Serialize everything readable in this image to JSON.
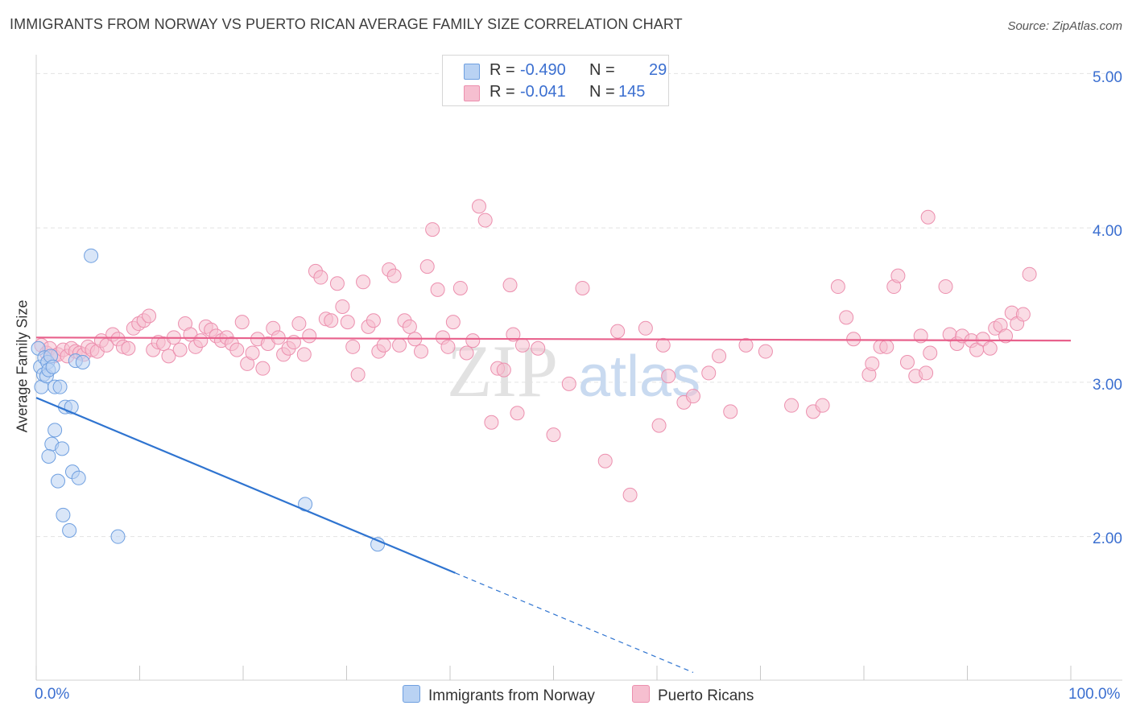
{
  "title": "IMMIGRANTS FROM NORWAY VS PUERTO RICAN AVERAGE FAMILY SIZE CORRELATION CHART",
  "source": "Source: ZipAtlas.com",
  "watermark": {
    "zip": "ZIP",
    "atlas": "atlas"
  },
  "colors": {
    "blue_fill": "#b9d2f3",
    "blue_stroke": "#6e9fe0",
    "blue_line": "#2f74d0",
    "pink_fill": "#f6bfd0",
    "pink_stroke": "#ec8fae",
    "pink_line": "#e8618c",
    "axis_text": "#3b6fd0",
    "grid": "#e3e3e3"
  },
  "legend": {
    "rows": [
      {
        "r_label": "R =",
        "r_value": "-0.490",
        "n_label": "N =",
        "n_value": "29"
      },
      {
        "r_label": "R =",
        "r_value": "-0.041",
        "n_label": "N =",
        "n_value": "145"
      }
    ]
  },
  "bottom_legend": {
    "series1": "Immigrants from Norway",
    "series2": "Puerto Ricans"
  },
  "chart_data": {
    "type": "scatter",
    "xlabel": "",
    "ylabel": "Average Family Size",
    "xlim": [
      0,
      100
    ],
    "ylim": [
      1.07,
      5.07
    ],
    "x_tick_labels": [
      "0.0%",
      "100.0%"
    ],
    "y_ticks": [
      2,
      3,
      4,
      5
    ],
    "y_tick_labels": [
      "2.00",
      "3.00",
      "4.00",
      "5.00"
    ],
    "grid": true,
    "series": [
      {
        "name": "Immigrants from Norway",
        "color": "blue",
        "r": -0.49,
        "n": 29,
        "trend": {
          "x0": 0,
          "y0": 2.9,
          "x_solid_end": 40.5,
          "x1": 63.5,
          "y1": 1.12
        },
        "points": [
          [
            0.2,
            3.22
          ],
          [
            0.4,
            3.1
          ],
          [
            0.5,
            2.97
          ],
          [
            0.7,
            3.05
          ],
          [
            0.8,
            3.16
          ],
          [
            1.0,
            3.04
          ],
          [
            1.1,
            3.13
          ],
          [
            1.2,
            3.08
          ],
          [
            1.4,
            3.17
          ],
          [
            1.5,
            2.6
          ],
          [
            1.2,
            2.52
          ],
          [
            1.6,
            3.1
          ],
          [
            1.8,
            2.97
          ],
          [
            1.8,
            2.69
          ],
          [
            2.1,
            2.36
          ],
          [
            2.3,
            2.97
          ],
          [
            2.5,
            2.57
          ],
          [
            2.6,
            2.14
          ],
          [
            2.8,
            2.84
          ],
          [
            3.2,
            2.04
          ],
          [
            3.4,
            2.84
          ],
          [
            3.5,
            2.42
          ],
          [
            3.8,
            3.14
          ],
          [
            4.1,
            2.38
          ],
          [
            4.5,
            3.13
          ],
          [
            5.3,
            3.82
          ],
          [
            7.9,
            2.0
          ],
          [
            26.0,
            2.21
          ],
          [
            33.0,
            1.95
          ]
        ]
      },
      {
        "name": "Puerto Ricans",
        "color": "pink",
        "r": -0.041,
        "n": 145,
        "trend": {
          "x0": 0,
          "y0": 3.29,
          "x1": 100,
          "y1": 3.27
        },
        "points": [
          [
            0.5,
            3.24
          ],
          [
            1.0,
            3.19
          ],
          [
            1.3,
            3.22
          ],
          [
            1.7,
            3.17
          ],
          [
            2.1,
            3.18
          ],
          [
            2.6,
            3.21
          ],
          [
            3.0,
            3.17
          ],
          [
            3.4,
            3.22
          ],
          [
            3.8,
            3.2
          ],
          [
            4.2,
            3.19
          ],
          [
            4.6,
            3.18
          ],
          [
            5.0,
            3.23
          ],
          [
            5.4,
            3.21
          ],
          [
            5.9,
            3.2
          ],
          [
            6.3,
            3.27
          ],
          [
            6.8,
            3.24
          ],
          [
            7.4,
            3.31
          ],
          [
            7.9,
            3.28
          ],
          [
            8.4,
            3.23
          ],
          [
            8.9,
            3.22
          ],
          [
            9.4,
            3.35
          ],
          [
            9.9,
            3.38
          ],
          [
            10.4,
            3.4
          ],
          [
            10.9,
            3.43
          ],
          [
            11.3,
            3.21
          ],
          [
            11.8,
            3.26
          ],
          [
            12.3,
            3.25
          ],
          [
            12.8,
            3.17
          ],
          [
            13.3,
            3.29
          ],
          [
            13.9,
            3.21
          ],
          [
            14.4,
            3.38
          ],
          [
            14.9,
            3.31
          ],
          [
            15.4,
            3.23
          ],
          [
            15.9,
            3.27
          ],
          [
            16.4,
            3.36
          ],
          [
            16.9,
            3.34
          ],
          [
            17.4,
            3.3
          ],
          [
            17.9,
            3.27
          ],
          [
            18.4,
            3.29
          ],
          [
            18.9,
            3.25
          ],
          [
            19.4,
            3.21
          ],
          [
            19.9,
            3.39
          ],
          [
            20.4,
            3.12
          ],
          [
            20.9,
            3.19
          ],
          [
            21.4,
            3.28
          ],
          [
            21.9,
            3.09
          ],
          [
            22.4,
            3.25
          ],
          [
            22.9,
            3.35
          ],
          [
            23.4,
            3.29
          ],
          [
            23.9,
            3.18
          ],
          [
            24.4,
            3.22
          ],
          [
            24.9,
            3.26
          ],
          [
            25.4,
            3.38
          ],
          [
            25.9,
            3.18
          ],
          [
            26.4,
            3.3
          ],
          [
            27.0,
            3.72
          ],
          [
            27.5,
            3.68
          ],
          [
            28.0,
            3.41
          ],
          [
            28.5,
            3.4
          ],
          [
            29.1,
            3.64
          ],
          [
            29.6,
            3.49
          ],
          [
            30.1,
            3.39
          ],
          [
            30.6,
            3.23
          ],
          [
            31.1,
            3.05
          ],
          [
            31.6,
            3.65
          ],
          [
            32.1,
            3.36
          ],
          [
            32.6,
            3.4
          ],
          [
            33.1,
            3.2
          ],
          [
            33.6,
            3.24
          ],
          [
            34.1,
            3.73
          ],
          [
            34.6,
            3.69
          ],
          [
            35.1,
            3.24
          ],
          [
            35.6,
            3.4
          ],
          [
            36.1,
            3.36
          ],
          [
            36.6,
            3.28
          ],
          [
            37.2,
            3.2
          ],
          [
            37.8,
            3.75
          ],
          [
            38.3,
            3.99
          ],
          [
            38.8,
            3.6
          ],
          [
            39.3,
            3.29
          ],
          [
            39.8,
            3.23
          ],
          [
            40.3,
            3.39
          ],
          [
            41.0,
            3.61
          ],
          [
            41.6,
            3.19
          ],
          [
            42.2,
            3.27
          ],
          [
            42.8,
            4.14
          ],
          [
            43.4,
            4.05
          ],
          [
            44.0,
            2.74
          ],
          [
            44.6,
            3.09
          ],
          [
            45.2,
            3.08
          ],
          [
            45.8,
            3.63
          ],
          [
            46.1,
            3.31
          ],
          [
            46.5,
            2.8
          ],
          [
            47.0,
            3.24
          ],
          [
            48.5,
            3.22
          ],
          [
            50.0,
            2.66
          ],
          [
            51.5,
            2.99
          ],
          [
            52.8,
            3.61
          ],
          [
            55.0,
            2.49
          ],
          [
            56.2,
            3.33
          ],
          [
            57.4,
            2.27
          ],
          [
            58.9,
            3.35
          ],
          [
            60.2,
            2.72
          ],
          [
            60.6,
            3.24
          ],
          [
            61.1,
            3.04
          ],
          [
            62.6,
            2.87
          ],
          [
            63.5,
            2.91
          ],
          [
            65.0,
            3.06
          ],
          [
            66.0,
            3.17
          ],
          [
            67.1,
            2.81
          ],
          [
            68.6,
            3.24
          ],
          [
            70.5,
            3.2
          ],
          [
            73.0,
            2.85
          ],
          [
            75.1,
            2.81
          ],
          [
            76.0,
            2.85
          ],
          [
            77.5,
            3.62
          ],
          [
            78.3,
            3.42
          ],
          [
            79.0,
            3.28
          ],
          [
            80.5,
            3.05
          ],
          [
            80.8,
            3.12
          ],
          [
            81.6,
            3.23
          ],
          [
            82.2,
            3.23
          ],
          [
            82.9,
            3.62
          ],
          [
            83.3,
            3.69
          ],
          [
            84.2,
            3.13
          ],
          [
            85.0,
            3.04
          ],
          [
            85.5,
            3.3
          ],
          [
            86.0,
            3.06
          ],
          [
            86.4,
            3.19
          ],
          [
            86.2,
            4.07
          ],
          [
            87.9,
            3.62
          ],
          [
            88.3,
            3.31
          ],
          [
            89.0,
            3.25
          ],
          [
            89.5,
            3.3
          ],
          [
            90.4,
            3.27
          ],
          [
            90.9,
            3.21
          ],
          [
            91.5,
            3.28
          ],
          [
            92.2,
            3.22
          ],
          [
            92.7,
            3.35
          ],
          [
            93.2,
            3.37
          ],
          [
            93.7,
            3.3
          ],
          [
            94.3,
            3.45
          ],
          [
            94.8,
            3.38
          ],
          [
            95.4,
            3.44
          ],
          [
            96.0,
            3.7
          ]
        ]
      }
    ]
  }
}
